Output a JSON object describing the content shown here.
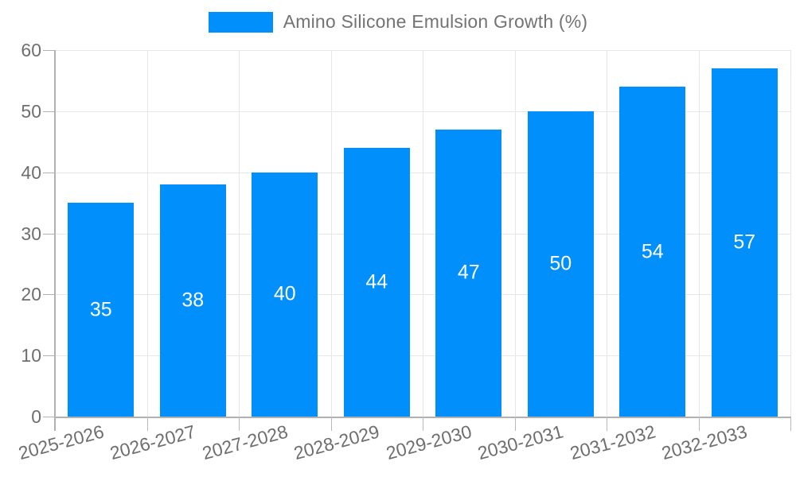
{
  "legend": {
    "label": "Amino Silicone Emulsion Growth (%)"
  },
  "chart_data": {
    "type": "bar",
    "title": "",
    "xlabel": "",
    "ylabel": "",
    "categories": [
      "2025-2026",
      "2026-2027",
      "2027-2028",
      "2028-2029",
      "2029-2030",
      "2030-2031",
      "2031-2032",
      "2032-2033"
    ],
    "series": [
      {
        "name": "Amino Silicone Emulsion Growth (%)",
        "values": [
          35,
          38,
          40,
          44,
          47,
          50,
          54,
          57
        ]
      }
    ],
    "data_labels": {
      "visible": true,
      "position": "center"
    },
    "yticks": [
      0,
      10,
      20,
      30,
      40,
      50,
      60
    ],
    "ylim": [
      0,
      60
    ],
    "grid": true,
    "legend_position": "top"
  },
  "colors": {
    "bar": "#008FFB",
    "grid": "#e7e7e7",
    "axis": "#b1b1b1",
    "tick": "#b9b9b9",
    "axis_label": "#6e6e6e",
    "legend_label": "#737373",
    "data_label": "#ffffff",
    "background": "#ffffff"
  }
}
